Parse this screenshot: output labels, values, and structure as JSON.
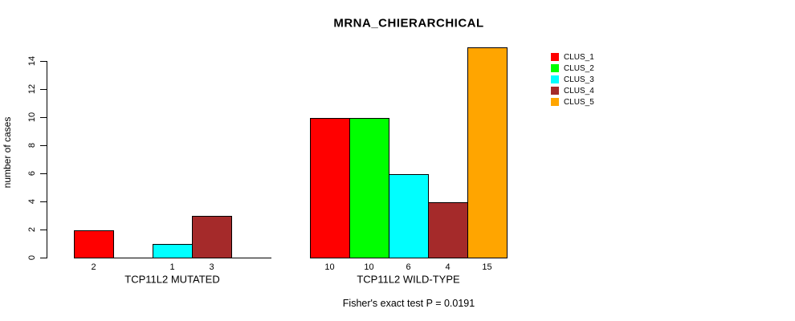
{
  "title": "MRNA_CHIERARCHICAL",
  "subtitle": "Fisher's exact test P = 0.0191",
  "chart_data": {
    "type": "bar",
    "title": "MRNA_CHIERARCHICAL",
    "ylabel": "number of cases",
    "xlabel": "",
    "ylim": [
      0,
      15
    ],
    "yticks": [
      0,
      2,
      4,
      6,
      8,
      10,
      12,
      14
    ],
    "grid": false,
    "legend_position": "right-outside",
    "categories": [
      "TCP11L2 MUTATED",
      "TCP11L2 WILD-TYPE"
    ],
    "series": [
      {
        "name": "CLUS_1",
        "color": "#FF0000",
        "values": [
          2,
          10
        ]
      },
      {
        "name": "CLUS_2",
        "color": "#00FF00",
        "values": [
          0,
          10
        ]
      },
      {
        "name": "CLUS_3",
        "color": "#00FFFF",
        "values": [
          1,
          6
        ]
      },
      {
        "name": "CLUS_4",
        "color": "#A52A2A",
        "values": [
          3,
          4
        ]
      },
      {
        "name": "CLUS_5",
        "color": "#FFA500",
        "values": [
          0,
          15
        ]
      }
    ],
    "bar_value_labels": {
      "TCP11L2 MUTATED": [
        "2",
        "1",
        "3"
      ],
      "TCP11L2 WILD-TYPE": [
        "10",
        "10",
        "6",
        "4",
        "15"
      ]
    },
    "annotation": "Fisher's exact test P = 0.0191",
    "axis_color": "#000000",
    "background_color": "#FFFFFF"
  }
}
